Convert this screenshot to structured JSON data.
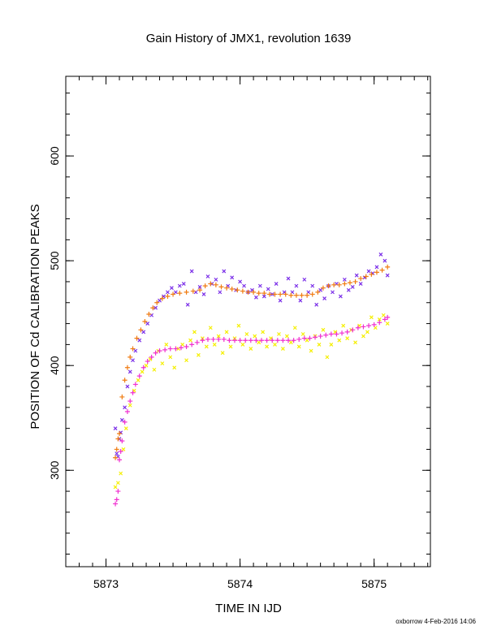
{
  "chart_data": {
    "type": "scatter",
    "title": "Gain History of JMX1, revolution 1639",
    "xlabel": "TIME IN IJD",
    "ylabel": "POSITION OF Cd CALIBRATION PEAKS",
    "xlim": [
      5872.7,
      5875.42
    ],
    "ylim": [
      208,
      676
    ],
    "x_ticks": [
      {
        "value": 5873,
        "label": "5873"
      },
      {
        "value": 5874,
        "label": "5874"
      },
      {
        "value": 5875,
        "label": "5875"
      }
    ],
    "y_ticks": [
      {
        "value": 300,
        "label": "300"
      },
      {
        "value": 400,
        "label": "400"
      },
      {
        "value": 500,
        "label": "500"
      },
      {
        "value": 600,
        "label": "600"
      }
    ],
    "x_minor_step": 0.1,
    "y_minor_step": 20,
    "grid": false,
    "footer": "oxborrow  4-Feb-2016 14:06",
    "series": [
      {
        "marker": "x",
        "color": "#7b2fe8",
        "points": [
          [
            5873.07,
            340
          ],
          [
            5873.08,
            316
          ],
          [
            5873.09,
            313
          ],
          [
            5873.1,
            330
          ],
          [
            5873.11,
            336
          ],
          [
            5873.12,
            348
          ],
          [
            5873.14,
            360
          ],
          [
            5873.16,
            380
          ],
          [
            5873.18,
            394
          ],
          [
            5873.2,
            405
          ],
          [
            5873.22,
            414
          ],
          [
            5873.25,
            424
          ],
          [
            5873.28,
            432
          ],
          [
            5873.31,
            440
          ],
          [
            5873.34,
            448
          ],
          [
            5873.37,
            455
          ],
          [
            5873.4,
            462
          ],
          [
            5873.43,
            466
          ],
          [
            5873.46,
            470
          ],
          [
            5873.49,
            474
          ],
          [
            5873.52,
            470
          ],
          [
            5873.55,
            476
          ],
          [
            5873.58,
            478
          ],
          [
            5873.61,
            458
          ],
          [
            5873.64,
            490
          ],
          [
            5873.67,
            470
          ],
          [
            5873.7,
            475
          ],
          [
            5873.73,
            468
          ],
          [
            5873.76,
            485
          ],
          [
            5873.79,
            478
          ],
          [
            5873.82,
            482
          ],
          [
            5873.85,
            470
          ],
          [
            5873.88,
            490
          ],
          [
            5873.91,
            476
          ],
          [
            5873.94,
            484
          ],
          [
            5873.97,
            472
          ],
          [
            5874.0,
            480
          ],
          [
            5874.03,
            476
          ],
          [
            5874.06,
            470
          ],
          [
            5874.09,
            472
          ],
          [
            5874.12,
            465
          ],
          [
            5874.15,
            476
          ],
          [
            5874.18,
            466
          ],
          [
            5874.21,
            473
          ],
          [
            5874.24,
            468
          ],
          [
            5874.27,
            478
          ],
          [
            5874.3,
            462
          ],
          [
            5874.33,
            470
          ],
          [
            5874.36,
            483
          ],
          [
            5874.39,
            470
          ],
          [
            5874.42,
            476
          ],
          [
            5874.45,
            462
          ],
          [
            5874.48,
            482
          ],
          [
            5874.51,
            470
          ],
          [
            5874.54,
            476
          ],
          [
            5874.57,
            458
          ],
          [
            5874.6,
            472
          ],
          [
            5874.63,
            464
          ],
          [
            5874.66,
            476
          ],
          [
            5874.69,
            470
          ],
          [
            5874.72,
            478
          ],
          [
            5874.75,
            466
          ],
          [
            5874.78,
            482
          ],
          [
            5874.81,
            472
          ],
          [
            5874.84,
            475
          ],
          [
            5874.87,
            486
          ],
          [
            5874.9,
            478
          ],
          [
            5874.93,
            484
          ],
          [
            5874.96,
            490
          ],
          [
            5874.99,
            488
          ],
          [
            5875.02,
            494
          ],
          [
            5875.05,
            506
          ],
          [
            5875.08,
            500
          ],
          [
            5875.1,
            486
          ]
        ]
      },
      {
        "marker": "+",
        "color": "#f07b10",
        "points": [
          [
            5873.07,
            312
          ],
          [
            5873.08,
            320
          ],
          [
            5873.09,
            330
          ],
          [
            5873.1,
            335
          ],
          [
            5873.12,
            370
          ],
          [
            5873.14,
            386
          ],
          [
            5873.16,
            398
          ],
          [
            5873.18,
            408
          ],
          [
            5873.2,
            416
          ],
          [
            5873.23,
            426
          ],
          [
            5873.26,
            434
          ],
          [
            5873.29,
            442
          ],
          [
            5873.32,
            449
          ],
          [
            5873.35,
            455
          ],
          [
            5873.38,
            460
          ],
          [
            5873.42,
            464
          ],
          [
            5873.46,
            466
          ],
          [
            5873.5,
            468
          ],
          [
            5873.55,
            469
          ],
          [
            5873.6,
            470
          ],
          [
            5873.65,
            471
          ],
          [
            5873.7,
            472
          ],
          [
            5873.74,
            476
          ],
          [
            5873.78,
            478
          ],
          [
            5873.82,
            477
          ],
          [
            5873.86,
            475
          ],
          [
            5873.9,
            474
          ],
          [
            5873.94,
            473
          ],
          [
            5873.98,
            472
          ],
          [
            5874.02,
            471
          ],
          [
            5874.06,
            470
          ],
          [
            5874.1,
            470
          ],
          [
            5874.14,
            469
          ],
          [
            5874.18,
            469
          ],
          [
            5874.22,
            468
          ],
          [
            5874.26,
            468
          ],
          [
            5874.3,
            468
          ],
          [
            5874.34,
            468
          ],
          [
            5874.38,
            467
          ],
          [
            5874.42,
            467
          ],
          [
            5874.46,
            467
          ],
          [
            5874.5,
            467
          ],
          [
            5874.54,
            468
          ],
          [
            5874.58,
            470
          ],
          [
            5874.62,
            474
          ],
          [
            5874.66,
            476
          ],
          [
            5874.7,
            477
          ],
          [
            5874.74,
            477
          ],
          [
            5874.78,
            478
          ],
          [
            5874.82,
            479
          ],
          [
            5874.86,
            480
          ],
          [
            5874.9,
            483
          ],
          [
            5874.94,
            485
          ],
          [
            5874.98,
            487
          ],
          [
            5875.02,
            489
          ],
          [
            5875.06,
            491
          ],
          [
            5875.1,
            494
          ]
        ]
      },
      {
        "marker": "x",
        "color": "#f5ef00",
        "points": [
          [
            5873.07,
            284
          ],
          [
            5873.09,
            288
          ],
          [
            5873.11,
            297
          ],
          [
            5873.13,
            320
          ],
          [
            5873.15,
            340
          ],
          [
            5873.18,
            362
          ],
          [
            5873.21,
            376
          ],
          [
            5873.24,
            386
          ],
          [
            5873.27,
            394
          ],
          [
            5873.3,
            400
          ],
          [
            5873.33,
            406
          ],
          [
            5873.36,
            396
          ],
          [
            5873.39,
            414
          ],
          [
            5873.42,
            402
          ],
          [
            5873.45,
            420
          ],
          [
            5873.48,
            408
          ],
          [
            5873.51,
            398
          ],
          [
            5873.54,
            416
          ],
          [
            5873.57,
            420
          ],
          [
            5873.6,
            405
          ],
          [
            5873.63,
            424
          ],
          [
            5873.66,
            432
          ],
          [
            5873.69,
            410
          ],
          [
            5873.72,
            426
          ],
          [
            5873.75,
            418
          ],
          [
            5873.78,
            436
          ],
          [
            5873.81,
            420
          ],
          [
            5873.84,
            428
          ],
          [
            5873.87,
            412
          ],
          [
            5873.9,
            432
          ],
          [
            5873.93,
            418
          ],
          [
            5873.96,
            426
          ],
          [
            5873.99,
            438
          ],
          [
            5874.02,
            420
          ],
          [
            5874.05,
            430
          ],
          [
            5874.08,
            416
          ],
          [
            5874.11,
            428
          ],
          [
            5874.14,
            422
          ],
          [
            5874.17,
            432
          ],
          [
            5874.2,
            418
          ],
          [
            5874.23,
            426
          ],
          [
            5874.26,
            420
          ],
          [
            5874.29,
            430
          ],
          [
            5874.32,
            416
          ],
          [
            5874.35,
            428
          ],
          [
            5874.38,
            422
          ],
          [
            5874.41,
            436
          ],
          [
            5874.44,
            418
          ],
          [
            5874.47,
            430
          ],
          [
            5874.5,
            424
          ],
          [
            5874.53,
            414
          ],
          [
            5874.56,
            428
          ],
          [
            5874.59,
            420
          ],
          [
            5874.62,
            434
          ],
          [
            5874.65,
            408
          ],
          [
            5874.68,
            420
          ],
          [
            5874.71,
            432
          ],
          [
            5874.74,
            424
          ],
          [
            5874.77,
            438
          ],
          [
            5874.8,
            426
          ],
          [
            5874.83,
            434
          ],
          [
            5874.86,
            422
          ],
          [
            5874.89,
            438
          ],
          [
            5874.92,
            428
          ],
          [
            5874.95,
            432
          ],
          [
            5874.98,
            446
          ],
          [
            5875.01,
            436
          ],
          [
            5875.04,
            444
          ],
          [
            5875.07,
            448
          ],
          [
            5875.1,
            440
          ]
        ]
      },
      {
        "marker": "+",
        "color": "#f030d0",
        "points": [
          [
            5873.07,
            268
          ],
          [
            5873.08,
            272
          ],
          [
            5873.09,
            280
          ],
          [
            5873.1,
            310
          ],
          [
            5873.11,
            318
          ],
          [
            5873.12,
            328
          ],
          [
            5873.14,
            346
          ],
          [
            5873.16,
            356
          ],
          [
            5873.18,
            366
          ],
          [
            5873.2,
            374
          ],
          [
            5873.22,
            382
          ],
          [
            5873.25,
            390
          ],
          [
            5873.28,
            398
          ],
          [
            5873.31,
            404
          ],
          [
            5873.34,
            408
          ],
          [
            5873.37,
            412
          ],
          [
            5873.4,
            414
          ],
          [
            5873.44,
            415
          ],
          [
            5873.48,
            416
          ],
          [
            5873.52,
            416
          ],
          [
            5873.56,
            417
          ],
          [
            5873.6,
            418
          ],
          [
            5873.64,
            420
          ],
          [
            5873.68,
            422
          ],
          [
            5873.72,
            424
          ],
          [
            5873.76,
            425
          ],
          [
            5873.8,
            425
          ],
          [
            5873.84,
            425
          ],
          [
            5873.88,
            425
          ],
          [
            5873.92,
            424
          ],
          [
            5873.96,
            424
          ],
          [
            5874.0,
            424
          ],
          [
            5874.04,
            424
          ],
          [
            5874.08,
            424
          ],
          [
            5874.12,
            424
          ],
          [
            5874.16,
            424
          ],
          [
            5874.2,
            424
          ],
          [
            5874.24,
            424
          ],
          [
            5874.28,
            424
          ],
          [
            5874.32,
            424
          ],
          [
            5874.36,
            424
          ],
          [
            5874.4,
            424
          ],
          [
            5874.44,
            425
          ],
          [
            5874.48,
            426
          ],
          [
            5874.52,
            426
          ],
          [
            5874.56,
            427
          ],
          [
            5874.6,
            428
          ],
          [
            5874.64,
            429
          ],
          [
            5874.68,
            430
          ],
          [
            5874.72,
            430
          ],
          [
            5874.76,
            431
          ],
          [
            5874.8,
            432
          ],
          [
            5874.84,
            434
          ],
          [
            5874.88,
            436
          ],
          [
            5874.92,
            437
          ],
          [
            5874.96,
            438
          ],
          [
            5875.0,
            439
          ],
          [
            5875.04,
            441
          ],
          [
            5875.08,
            444
          ],
          [
            5875.1,
            446
          ]
        ]
      }
    ]
  }
}
